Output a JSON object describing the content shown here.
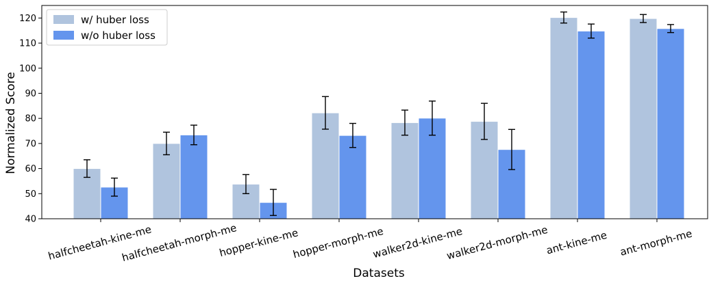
{
  "chart_data": {
    "type": "bar",
    "title": "",
    "xlabel": "Datasets",
    "ylabel": "Normalized Score",
    "ylim": [
      40,
      125
    ],
    "yticks": [
      40,
      50,
      60,
      70,
      80,
      90,
      100,
      110,
      120
    ],
    "categories": [
      "halfcheetah-kine-me",
      "halfcheetah-morph-me",
      "hopper-kine-me",
      "hopper-morph-me",
      "walker2d-kine-me",
      "walker2d-morph-me",
      "ant-kine-me",
      "ant-morph-me"
    ],
    "series": [
      {
        "name": "w/ huber loss",
        "color": "#b0c4de",
        "values": [
          60.0,
          70.0,
          53.8,
          82.2,
          78.3,
          78.8,
          120.2,
          119.8
        ],
        "errors": [
          3.5,
          4.5,
          3.8,
          6.5,
          5.0,
          7.2,
          2.2,
          1.6
        ]
      },
      {
        "name": "w/o huber loss",
        "color": "#6495ed",
        "values": [
          52.6,
          73.4,
          46.5,
          73.2,
          80.1,
          67.6,
          114.8,
          115.8
        ],
        "errors": [
          3.6,
          3.9,
          5.2,
          4.8,
          6.8,
          8.0,
          2.8,
          1.6
        ]
      }
    ],
    "legend": {
      "position": "top-left"
    },
    "grid": false
  }
}
